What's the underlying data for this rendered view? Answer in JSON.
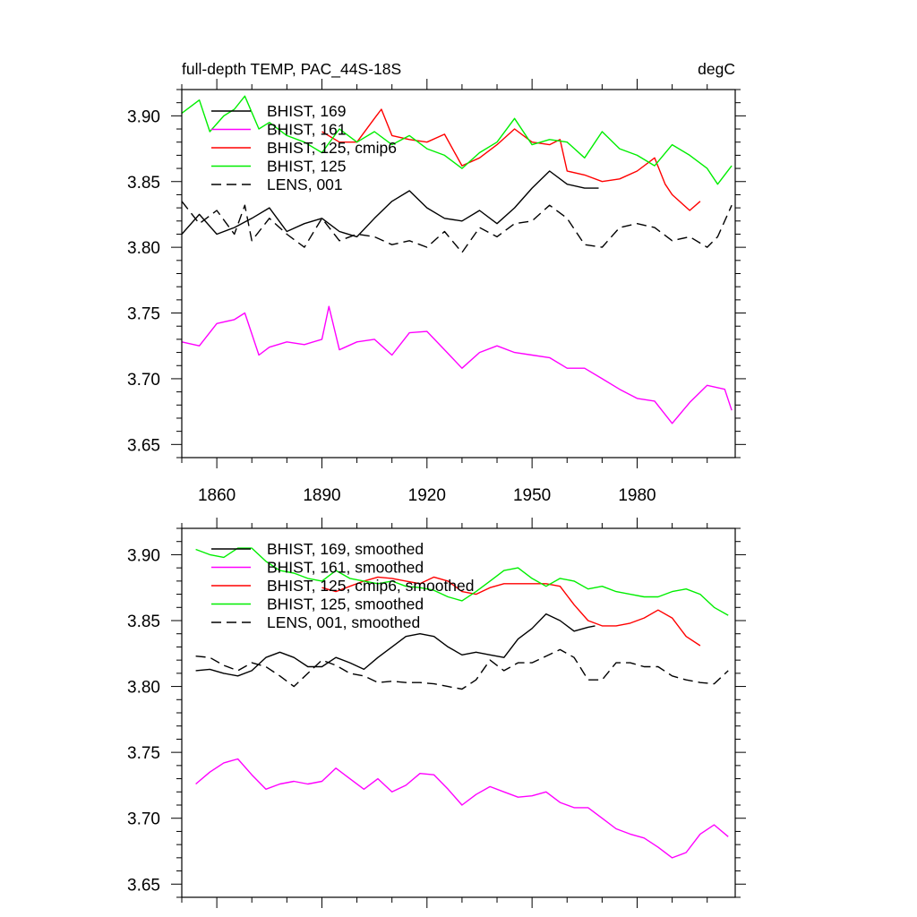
{
  "figure": {
    "title_left": "full-depth TEMP, PAC_44S-18S",
    "title_right": "degC"
  },
  "colors": {
    "black": "#000000",
    "magenta": "#ff00ff",
    "red": "#ff0000",
    "green": "#00ee00"
  },
  "chart_data": [
    {
      "type": "line",
      "panel": "top",
      "title": "full-depth TEMP, PAC_44S-18S",
      "units": "degC",
      "xlim": [
        1850,
        2008
      ],
      "ylim": [
        3.64,
        3.92
      ],
      "xticks": [
        1860,
        1890,
        1920,
        1950,
        1980
      ],
      "yticks": [
        3.65,
        3.7,
        3.75,
        3.8,
        3.85,
        3.9
      ],
      "xtick_labels": [
        "1860",
        "1890",
        "1920",
        "1950",
        "1980"
      ],
      "ytick_labels": [
        "3.65",
        "3.70",
        "3.75",
        "3.80",
        "3.85",
        "3.90"
      ],
      "legend_position": "top-left",
      "series": [
        {
          "name": "BHIST, 169",
          "color": "#000000",
          "dash": false,
          "x": [
            1850,
            1855,
            1860,
            1865,
            1870,
            1875,
            1880,
            1885,
            1890,
            1895,
            1900,
            1905,
            1910,
            1915,
            1920,
            1925,
            1930,
            1935,
            1940,
            1945,
            1950,
            1955,
            1960,
            1965,
            1969
          ],
          "y": [
            3.81,
            3.825,
            3.81,
            3.815,
            3.822,
            3.83,
            3.812,
            3.818,
            3.822,
            3.812,
            3.808,
            3.822,
            3.835,
            3.843,
            3.83,
            3.822,
            3.82,
            3.828,
            3.818,
            3.83,
            3.845,
            3.858,
            3.848,
            3.845,
            3.845
          ]
        },
        {
          "name": "BHIST, 161",
          "color": "#ff00ff",
          "dash": false,
          "x": [
            1850,
            1855,
            1860,
            1865,
            1868,
            1872,
            1875,
            1880,
            1885,
            1890,
            1892,
            1895,
            1900,
            1905,
            1910,
            1915,
            1920,
            1925,
            1930,
            1935,
            1940,
            1945,
            1950,
            1955,
            1960,
            1965,
            1970,
            1975,
            1980,
            1985,
            1990,
            1995,
            2000,
            2005,
            2007
          ],
          "y": [
            3.728,
            3.725,
            3.742,
            3.745,
            3.75,
            3.718,
            3.724,
            3.728,
            3.726,
            3.73,
            3.755,
            3.722,
            3.728,
            3.73,
            3.718,
            3.735,
            3.736,
            3.722,
            3.708,
            3.72,
            3.725,
            3.72,
            3.718,
            3.716,
            3.708,
            3.708,
            3.7,
            3.692,
            3.685,
            3.683,
            3.666,
            3.682,
            3.695,
            3.692,
            3.676
          ]
        },
        {
          "name": "BHIST, 125, cmip6",
          "color": "#ff0000",
          "dash": false,
          "x": [
            1890,
            1895,
            1900,
            1905,
            1907,
            1910,
            1915,
            1920,
            1925,
            1930,
            1935,
            1940,
            1945,
            1950,
            1955,
            1958,
            1960,
            1965,
            1970,
            1975,
            1980,
            1985,
            1988,
            1990,
            1995,
            1998
          ],
          "y": [
            3.888,
            3.88,
            3.88,
            3.898,
            3.905,
            3.885,
            3.882,
            3.88,
            3.886,
            3.862,
            3.868,
            3.878,
            3.89,
            3.88,
            3.878,
            3.882,
            3.858,
            3.855,
            3.85,
            3.852,
            3.858,
            3.868,
            3.848,
            3.84,
            3.828,
            3.835
          ]
        },
        {
          "name": "BHIST, 125",
          "color": "#00ee00",
          "dash": false,
          "x": [
            1850,
            1855,
            1858,
            1862,
            1865,
            1868,
            1872,
            1875,
            1880,
            1885,
            1890,
            1895,
            1900,
            1905,
            1910,
            1915,
            1920,
            1925,
            1930,
            1935,
            1940,
            1945,
            1950,
            1955,
            1960,
            1965,
            1970,
            1975,
            1980,
            1985,
            1990,
            1995,
            2000,
            2003,
            2007
          ],
          "y": [
            3.902,
            3.912,
            3.888,
            3.9,
            3.905,
            3.915,
            3.89,
            3.895,
            3.885,
            3.88,
            3.872,
            3.89,
            3.88,
            3.888,
            3.878,
            3.885,
            3.875,
            3.87,
            3.86,
            3.872,
            3.88,
            3.898,
            3.878,
            3.882,
            3.88,
            3.868,
            3.888,
            3.875,
            3.87,
            3.862,
            3.878,
            3.87,
            3.86,
            3.848,
            3.862
          ]
        },
        {
          "name": "LENS, 001",
          "color": "#000000",
          "dash": true,
          "x": [
            1850,
            1855,
            1860,
            1865,
            1868,
            1870,
            1875,
            1880,
            1885,
            1890,
            1895,
            1900,
            1905,
            1910,
            1915,
            1920,
            1925,
            1930,
            1935,
            1940,
            1945,
            1950,
            1955,
            1960,
            1965,
            1970,
            1975,
            1980,
            1985,
            1990,
            1995,
            2000,
            2003,
            2007
          ],
          "y": [
            3.835,
            3.818,
            3.828,
            3.81,
            3.832,
            3.805,
            3.822,
            3.81,
            3.8,
            3.822,
            3.805,
            3.81,
            3.808,
            3.802,
            3.805,
            3.8,
            3.812,
            3.796,
            3.815,
            3.808,
            3.818,
            3.82,
            3.832,
            3.822,
            3.802,
            3.8,
            3.815,
            3.818,
            3.815,
            3.805,
            3.808,
            3.8,
            3.808,
            3.832
          ]
        }
      ]
    },
    {
      "type": "line",
      "panel": "bottom",
      "xlim": [
        1850,
        2008
      ],
      "ylim": [
        3.64,
        3.92
      ],
      "xticks": [
        1860,
        1890,
        1920,
        1950,
        1980
      ],
      "yticks": [
        3.65,
        3.7,
        3.75,
        3.8,
        3.85,
        3.9
      ],
      "ytick_labels": [
        "3.65",
        "3.70",
        "3.75",
        "3.80",
        "3.85",
        "3.90"
      ],
      "legend_position": "top-left",
      "series": [
        {
          "name": "BHIST, 169, smoothed",
          "color": "#000000",
          "dash": false,
          "x": [
            1854,
            1858,
            1862,
            1866,
            1870,
            1874,
            1878,
            1882,
            1886,
            1890,
            1894,
            1898,
            1902,
            1906,
            1910,
            1914,
            1918,
            1922,
            1926,
            1930,
            1934,
            1938,
            1942,
            1946,
            1950,
            1954,
            1958,
            1962,
            1966,
            1968
          ],
          "y": [
            3.812,
            3.813,
            3.81,
            3.808,
            3.812,
            3.822,
            3.826,
            3.822,
            3.815,
            3.815,
            3.822,
            3.818,
            3.813,
            3.822,
            3.83,
            3.838,
            3.84,
            3.838,
            3.83,
            3.824,
            3.826,
            3.824,
            3.822,
            3.836,
            3.844,
            3.855,
            3.85,
            3.842,
            3.845,
            3.846
          ]
        },
        {
          "name": "BHIST, 161, smoothed",
          "color": "#ff00ff",
          "dash": false,
          "x": [
            1854,
            1858,
            1862,
            1866,
            1870,
            1874,
            1878,
            1882,
            1886,
            1890,
            1894,
            1898,
            1902,
            1906,
            1910,
            1914,
            1918,
            1922,
            1926,
            1930,
            1934,
            1938,
            1942,
            1946,
            1950,
            1954,
            1958,
            1962,
            1966,
            1970,
            1974,
            1978,
            1982,
            1986,
            1990,
            1994,
            1998,
            2002,
            2006
          ],
          "y": [
            3.726,
            3.735,
            3.742,
            3.745,
            3.733,
            3.722,
            3.726,
            3.728,
            3.726,
            3.728,
            3.738,
            3.73,
            3.722,
            3.73,
            3.72,
            3.725,
            3.734,
            3.733,
            3.722,
            3.71,
            3.718,
            3.724,
            3.72,
            3.716,
            3.717,
            3.72,
            3.712,
            3.708,
            3.708,
            3.7,
            3.692,
            3.688,
            3.685,
            3.678,
            3.67,
            3.674,
            3.688,
            3.695,
            3.686
          ]
        },
        {
          "name": "BHIST, 125, cmip6, smoothed",
          "color": "#ff0000",
          "dash": false,
          "x": [
            1890,
            1894,
            1898,
            1902,
            1906,
            1910,
            1914,
            1918,
            1922,
            1926,
            1930,
            1934,
            1938,
            1942,
            1946,
            1950,
            1954,
            1958,
            1962,
            1966,
            1970,
            1974,
            1978,
            1982,
            1986,
            1990,
            1994,
            1998
          ],
          "y": [
            3.875,
            3.872,
            3.876,
            3.88,
            3.883,
            3.882,
            3.88,
            3.878,
            3.883,
            3.88,
            3.872,
            3.87,
            3.875,
            3.878,
            3.878,
            3.878,
            3.878,
            3.876,
            3.862,
            3.85,
            3.846,
            3.846,
            3.848,
            3.852,
            3.858,
            3.852,
            3.838,
            3.831
          ]
        },
        {
          "name": "BHIST, 125, smoothed",
          "color": "#00ee00",
          "dash": false,
          "x": [
            1854,
            1858,
            1862,
            1866,
            1870,
            1874,
            1878,
            1882,
            1886,
            1890,
            1894,
            1898,
            1902,
            1906,
            1910,
            1914,
            1918,
            1922,
            1926,
            1930,
            1934,
            1938,
            1942,
            1946,
            1950,
            1954,
            1958,
            1962,
            1966,
            1970,
            1974,
            1978,
            1982,
            1986,
            1990,
            1994,
            1998,
            2002,
            2006
          ],
          "y": [
            3.904,
            3.9,
            3.898,
            3.905,
            3.905,
            3.895,
            3.888,
            3.886,
            3.882,
            3.88,
            3.888,
            3.882,
            3.88,
            3.878,
            3.88,
            3.876,
            3.875,
            3.873,
            3.868,
            3.865,
            3.872,
            3.88,
            3.888,
            3.89,
            3.882,
            3.876,
            3.882,
            3.88,
            3.874,
            3.876,
            3.872,
            3.87,
            3.868,
            3.868,
            3.872,
            3.874,
            3.87,
            3.86,
            3.854
          ]
        },
        {
          "name": "LENS, 001, smoothed",
          "color": "#000000",
          "dash": true,
          "x": [
            1854,
            1858,
            1862,
            1866,
            1870,
            1874,
            1878,
            1882,
            1886,
            1890,
            1894,
            1898,
            1902,
            1906,
            1910,
            1914,
            1918,
            1922,
            1926,
            1930,
            1934,
            1938,
            1942,
            1946,
            1950,
            1954,
            1958,
            1962,
            1966,
            1970,
            1974,
            1978,
            1982,
            1986,
            1990,
            1994,
            1998,
            2002,
            2006
          ],
          "y": [
            3.823,
            3.822,
            3.816,
            3.812,
            3.818,
            3.815,
            3.808,
            3.8,
            3.81,
            3.82,
            3.816,
            3.81,
            3.808,
            3.803,
            3.804,
            3.803,
            3.803,
            3.802,
            3.8,
            3.798,
            3.805,
            3.82,
            3.812,
            3.818,
            3.818,
            3.823,
            3.828,
            3.822,
            3.805,
            3.805,
            3.818,
            3.818,
            3.815,
            3.815,
            3.808,
            3.805,
            3.803,
            3.802,
            3.812
          ]
        }
      ]
    }
  ]
}
